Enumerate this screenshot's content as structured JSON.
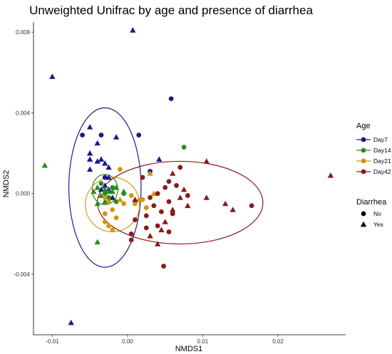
{
  "chart_data": {
    "type": "scatter",
    "title": "Unweighted Unifrac by age and presence of diarrhea",
    "xlabel": "NMDS1",
    "ylabel": "NMDS2",
    "xlim": [
      -0.0125,
      0.029
    ],
    "ylim": [
      -0.007,
      0.0085
    ],
    "x_ticks": [
      -0.01,
      0.0,
      0.01,
      0.02
    ],
    "x_tick_labels": [
      "-0.01",
      "0.00",
      "0.01",
      "0.02"
    ],
    "y_ticks": [
      -0.004,
      0.0,
      0.004,
      0.008
    ],
    "y_tick_labels": [
      "-0.004",
      "0.000",
      "0.004",
      "0.008"
    ],
    "grid": false,
    "legend_placement": "right",
    "legends": {
      "age": {
        "title": "Age",
        "entries": [
          {
            "key": "Day7",
            "label": "Day7",
            "color": "#1a1a8c"
          },
          {
            "key": "Day14",
            "label": "Day14",
            "color": "#2a8a1f"
          },
          {
            "key": "Day21",
            "label": "Day21",
            "color": "#d4950f"
          },
          {
            "key": "Day42",
            "label": "Day42",
            "color": "#8b1a1a"
          }
        ]
      },
      "diarrhea": {
        "title": "Diarrhea",
        "entries": [
          {
            "key": "No",
            "label": "No",
            "shape": "circle"
          },
          {
            "key": "Yes",
            "label": "Yes",
            "shape": "triangle"
          }
        ]
      }
    },
    "ellipses": [
      {
        "group": "Day7",
        "cx": -0.003,
        "cy": 0.0003,
        "rx": 0.0048,
        "ry": 0.00395,
        "angle_deg": 0
      },
      {
        "group": "Day14",
        "cx": -0.003,
        "cy": 0.0002,
        "rx": 0.0017,
        "ry": 0.00075,
        "angle_deg": 0
      },
      {
        "group": "Day21",
        "cx": -0.002,
        "cy": -0.00055,
        "rx": 0.0036,
        "ry": 0.00135,
        "angle_deg": 0
      },
      {
        "group": "Day42",
        "cx": 0.007,
        "cy": -0.00045,
        "rx": 0.011,
        "ry": 0.00205,
        "angle_deg": 0
      }
    ],
    "series": [
      {
        "group": "Day7",
        "shape": "triangle",
        "points": [
          [
            0.0007,
            0.0081
          ],
          [
            -0.01,
            0.0058
          ],
          [
            -0.005,
            0.0033
          ],
          [
            -0.004,
            0.0025
          ],
          [
            -0.0015,
            0.0028
          ],
          [
            -0.005,
            0.002
          ],
          [
            -0.005,
            0.0017
          ],
          [
            -0.0035,
            0.0017
          ],
          [
            -0.005,
            0.0012
          ],
          [
            -0.003,
            0.0015
          ],
          [
            -0.0025,
            0.0008
          ],
          [
            -0.003,
            0.0004
          ],
          [
            -0.0035,
            0.0002
          ],
          [
            -0.0025,
            0.0002
          ],
          [
            -0.002,
            -0.0002
          ],
          [
            -0.0025,
            0.0013
          ],
          [
            -0.004,
            0.0016
          ],
          [
            0.0042,
            0.0017
          ],
          [
            -0.0075,
            -0.0064
          ]
        ]
      },
      {
        "group": "Day7",
        "shape": "circle",
        "points": [
          [
            0.0058,
            0.0047
          ],
          [
            -0.006,
            0.0029
          ],
          [
            0.0015,
            0.0029
          ],
          [
            -0.0035,
            0.0029
          ],
          [
            0.003,
            0.0011
          ],
          [
            -0.003,
            0.0008
          ]
        ]
      },
      {
        "group": "Day14",
        "shape": "triangle",
        "points": [
          [
            -0.011,
            0.0014
          ],
          [
            -0.0045,
            0.0001
          ],
          [
            -0.004,
            0.0003
          ],
          [
            -0.0035,
            -0.0001
          ],
          [
            -0.003,
            0.0002
          ],
          [
            -0.0025,
            0.0001
          ],
          [
            -0.002,
            0.0001
          ],
          [
            -0.0015,
            0.0003
          ],
          [
            -0.004,
            -0.0005
          ],
          [
            -0.003,
            -0.0004
          ],
          [
            -0.0005,
            0.0001
          ],
          [
            -0.004,
            -0.0024
          ]
        ]
      },
      {
        "group": "Day14",
        "shape": "circle",
        "points": [
          [
            0.0075,
            0.0023
          ],
          [
            -0.0035,
            0.0005
          ],
          [
            -0.003,
            0.0
          ],
          [
            -0.0025,
            -0.0002
          ],
          [
            -0.002,
            0.0003
          ],
          [
            -0.0015,
            -0.0004
          ],
          [
            -0.0005,
            0.0
          ]
        ]
      },
      {
        "group": "Day21",
        "shape": "circle",
        "points": [
          [
            -0.001,
            0.0012
          ],
          [
            -0.003,
            -0.0002
          ],
          [
            -0.0025,
            -0.0004
          ],
          [
            -0.002,
            -0.0008
          ],
          [
            -0.003,
            -0.001
          ],
          [
            -0.0015,
            -0.0012
          ],
          [
            -0.003,
            -0.0014
          ],
          [
            -0.0025,
            -0.0016
          ],
          [
            -0.002,
            -0.0018
          ],
          [
            0.001,
            -0.0005
          ],
          [
            0.002,
            -0.0003
          ],
          [
            0.0005,
            -0.0001
          ],
          [
            -0.0005,
            -0.0005
          ],
          [
            0.0025,
            -0.0007
          ]
        ]
      },
      {
        "group": "Day21",
        "shape": "triangle",
        "points": [
          [
            0.003,
            0.001
          ],
          [
            0.0015,
            -0.0003
          ],
          [
            -0.001,
            -0.0003
          ],
          [
            0.0035,
            0.0
          ]
        ]
      },
      {
        "group": "Day42",
        "shape": "triangle",
        "points": [
          [
            0.027,
            0.0009
          ],
          [
            0.0105,
            0.0016
          ],
          [
            0.007,
            -0.0002
          ],
          [
            0.008,
            -0.0006
          ],
          [
            0.006,
            -0.0008
          ],
          [
            0.005,
            -0.0014
          ],
          [
            0.0045,
            -0.0018
          ],
          [
            0.003,
            -0.0021
          ],
          [
            0.006,
            0.001
          ],
          [
            0.013,
            -0.0005
          ],
          [
            0.014,
            -0.0008
          ],
          [
            0.0105,
            -0.0002
          ],
          [
            0.0075,
            0.0002
          ],
          [
            0.001,
            -0.0003
          ],
          [
            0.004,
            -0.0025
          ]
        ]
      },
      {
        "group": "Day42",
        "shape": "circle",
        "points": [
          [
            0.0165,
            -0.0006
          ],
          [
            0.007,
            0.0013
          ],
          [
            0.0055,
            0.0006
          ],
          [
            0.005,
            0.0003
          ],
          [
            0.004,
            0.0
          ],
          [
            0.003,
            -0.0002
          ],
          [
            0.0035,
            -0.0006
          ],
          [
            0.0055,
            -0.0004
          ],
          [
            0.006,
            -0.001
          ],
          [
            0.0045,
            -0.0009
          ],
          [
            0.0025,
            -0.0011
          ],
          [
            0.001,
            -0.0013
          ],
          [
            0.0005,
            -0.002
          ],
          [
            0.0005,
            -0.0023
          ],
          [
            0.0025,
            -0.0017
          ],
          [
            0.004,
            -0.0016
          ],
          [
            0.0055,
            -0.0019
          ],
          [
            0.0048,
            -0.0036
          ],
          [
            0.002,
            0.0008
          ],
          [
            0.008,
            -0.0001
          ],
          [
            0.0065,
            0.0004
          ]
        ]
      }
    ]
  }
}
